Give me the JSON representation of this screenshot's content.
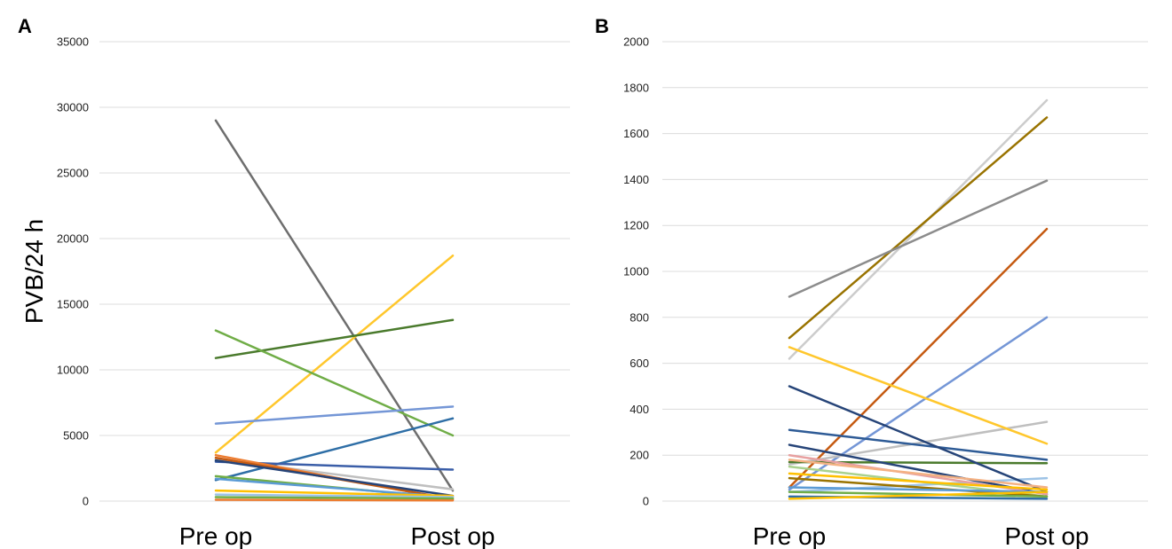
{
  "chart_data": [
    {
      "panel": "A",
      "type": "line",
      "ylabel": "PVB/24 h",
      "categories": [
        "Pre op",
        "Post op"
      ],
      "ylim": [
        0,
        35000
      ],
      "yticks": [
        0,
        5000,
        10000,
        15000,
        20000,
        25000,
        30000,
        35000
      ],
      "grid": true,
      "series": [
        {
          "color": "#6e6e6e",
          "values": [
            29000,
            800
          ]
        },
        {
          "color": "#ffc72c",
          "values": [
            3700,
            18700
          ]
        },
        {
          "color": "#4a7a2c",
          "values": [
            10900,
            13800
          ]
        },
        {
          "color": "#70ad47",
          "values": [
            13000,
            5000
          ]
        },
        {
          "color": "#7496d6",
          "values": [
            5900,
            7200
          ]
        },
        {
          "color": "#2e6ea6",
          "values": [
            1600,
            6300
          ]
        },
        {
          "color": "#3b5ea8",
          "values": [
            3000,
            2400
          ]
        },
        {
          "color": "#bfbfbf",
          "values": [
            3200,
            900
          ]
        },
        {
          "color": "#ed7d31",
          "values": [
            3500,
            100
          ]
        },
        {
          "color": "#c55a11",
          "values": [
            3300,
            150
          ]
        },
        {
          "color": "#264478",
          "values": [
            3100,
            400
          ]
        },
        {
          "color": "#70ad47",
          "values": [
            1900,
            200
          ]
        },
        {
          "color": "#5b9bd5",
          "values": [
            1700,
            300
          ]
        },
        {
          "color": "#ffc000",
          "values": [
            800,
            400
          ]
        },
        {
          "color": "#9dc3e6",
          "values": [
            500,
            300
          ]
        },
        {
          "color": "#70ad47",
          "values": [
            300,
            200
          ]
        },
        {
          "color": "#ed7d31",
          "values": [
            100,
            50
          ]
        }
      ]
    },
    {
      "panel": "B",
      "type": "line",
      "categories": [
        "Pre op",
        "Post op"
      ],
      "ylim": [
        0,
        2000
      ],
      "yticks": [
        0,
        200,
        400,
        600,
        800,
        1000,
        1200,
        1400,
        1600,
        1800,
        2000
      ],
      "grid": true,
      "series": [
        {
          "color": "#cccccc",
          "values": [
            620,
            1745
          ]
        },
        {
          "color": "#997300",
          "values": [
            710,
            1670
          ]
        },
        {
          "color": "#8c8c8c",
          "values": [
            890,
            1395
          ]
        },
        {
          "color": "#c55a11",
          "values": [
            60,
            1185
          ]
        },
        {
          "color": "#7496d6",
          "values": [
            50,
            800
          ]
        },
        {
          "color": "#bfbfbf",
          "values": [
            160,
            345
          ]
        },
        {
          "color": "#ffc72c",
          "values": [
            670,
            250
          ]
        },
        {
          "color": "#2e5b96",
          "values": [
            310,
            180
          ]
        },
        {
          "color": "#4a7a2c",
          "values": [
            170,
            165
          ]
        },
        {
          "color": "#9dc3e6",
          "values": [
            40,
            100
          ]
        },
        {
          "color": "#264478",
          "values": [
            500,
            40
          ]
        },
        {
          "color": "#264478",
          "values": [
            245,
            30
          ]
        },
        {
          "color": "#e7a0a0",
          "values": [
            200,
            30
          ]
        },
        {
          "color": "#f4b183",
          "values": [
            180,
            60
          ]
        },
        {
          "color": "#a9d18e",
          "values": [
            150,
            20
          ]
        },
        {
          "color": "#ffc000",
          "values": [
            120,
            50
          ]
        },
        {
          "color": "#997300",
          "values": [
            100,
            20
          ]
        },
        {
          "color": "#5b9bd5",
          "values": [
            60,
            40
          ]
        },
        {
          "color": "#70ad47",
          "values": [
            40,
            20
          ]
        },
        {
          "color": "#2e6ea6",
          "values": [
            20,
            10
          ]
        },
        {
          "color": "#ffc000",
          "values": [
            10,
            40
          ]
        }
      ]
    }
  ]
}
